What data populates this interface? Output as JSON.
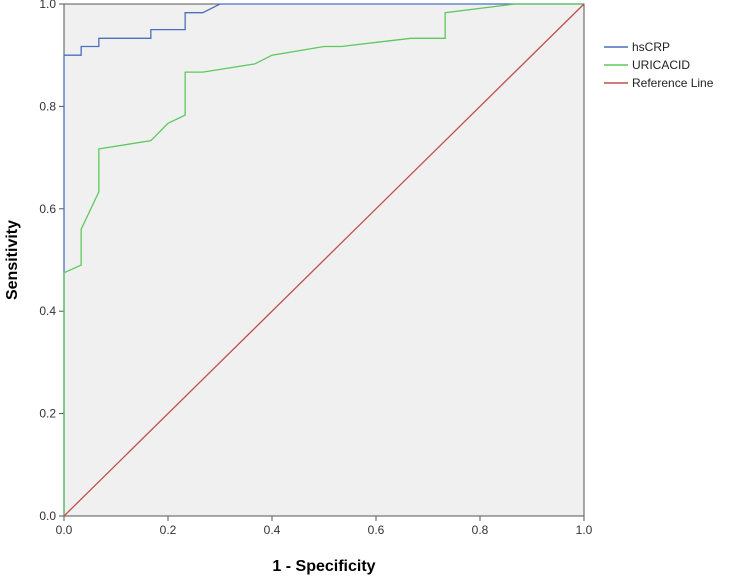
{
  "chart_data": {
    "type": "line",
    "title": "",
    "xlabel": "1 - Specificity",
    "ylabel": "Sensitivity",
    "xlim": [
      0,
      1
    ],
    "ylim": [
      0,
      1
    ],
    "xticks": [
      "0.0",
      "0.2",
      "0.4",
      "0.6",
      "0.8",
      "1.0"
    ],
    "yticks": [
      "0.0",
      "0.2",
      "0.4",
      "0.6",
      "0.8",
      "1.0"
    ],
    "grid": false,
    "background": "#f0f0f0",
    "legend_position": "right",
    "series": [
      {
        "name": "hsCRP",
        "color": "#4a6fc0",
        "points": [
          [
            0,
            0
          ],
          [
            0,
            0.9
          ],
          [
            0.033,
            0.9
          ],
          [
            0.033,
            0.917
          ],
          [
            0.067,
            0.917
          ],
          [
            0.067,
            0.933
          ],
          [
            0.167,
            0.933
          ],
          [
            0.167,
            0.95
          ],
          [
            0.233,
            0.95
          ],
          [
            0.233,
            0.983
          ],
          [
            0.267,
            0.983
          ],
          [
            0.3,
            1.0
          ],
          [
            1.0,
            1.0
          ]
        ]
      },
      {
        "name": "URICACID",
        "color": "#5dc85d",
        "points": [
          [
            0,
            0
          ],
          [
            0,
            0.475
          ],
          [
            0.033,
            0.49
          ],
          [
            0.033,
            0.56
          ],
          [
            0.067,
            0.633
          ],
          [
            0.067,
            0.717
          ],
          [
            0.167,
            0.733
          ],
          [
            0.2,
            0.767
          ],
          [
            0.233,
            0.783
          ],
          [
            0.233,
            0.867
          ],
          [
            0.267,
            0.867
          ],
          [
            0.367,
            0.883
          ],
          [
            0.4,
            0.9
          ],
          [
            0.5,
            0.917
          ],
          [
            0.533,
            0.917
          ],
          [
            0.667,
            0.933
          ],
          [
            0.733,
            0.933
          ],
          [
            0.733,
            0.983
          ],
          [
            0.867,
            1.0
          ],
          [
            1.0,
            1.0
          ]
        ]
      },
      {
        "name": "Reference Line",
        "color": "#c0504d",
        "points": [
          [
            0,
            0
          ],
          [
            1,
            1
          ]
        ]
      }
    ]
  }
}
